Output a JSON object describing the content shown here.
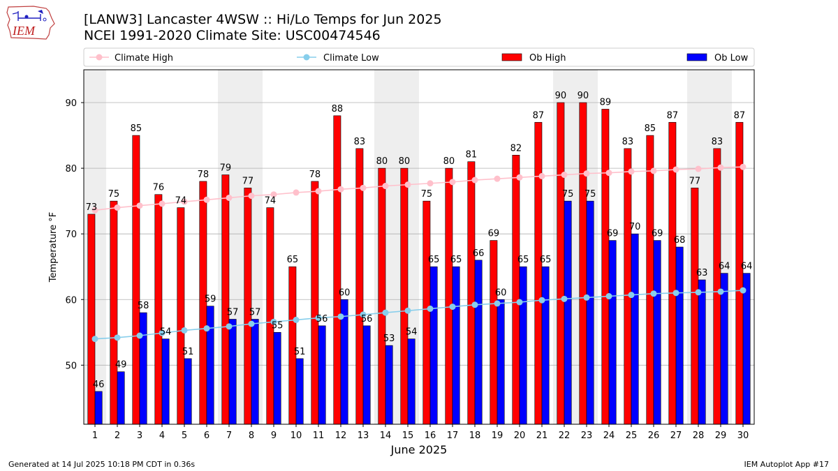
{
  "header": {
    "title_line1": "[LANW3] Lancaster 4WSW :: Hi/Lo Temps for Jun 2025",
    "title_line2": "NCEI 1991-2020 Climate Site: USC00474546",
    "logo_text": "IEM"
  },
  "footer": {
    "left": "Generated at 14 Jul 2025 10:18 PM CDT in 0.36s",
    "right": "IEM Autoplot App #17"
  },
  "colors": {
    "ob_high": "#ff0000",
    "ob_low": "#0000ff",
    "climate_high": "#ffc0cb",
    "climate_low": "#87ceeb",
    "weekend_shade": "#eeeeee",
    "grid": "#b0b0b0"
  },
  "chart_data": {
    "type": "bar",
    "xlabel": "June 2025",
    "ylabel": "Temperature °F",
    "ylim": [
      41,
      95
    ],
    "yticks": [
      50,
      60,
      70,
      80,
      90
    ],
    "grid": "horizontal",
    "legend_position": "top",
    "categories": [
      "1",
      "2",
      "3",
      "4",
      "5",
      "6",
      "7",
      "8",
      "9",
      "10",
      "11",
      "12",
      "13",
      "14",
      "15",
      "16",
      "17",
      "18",
      "19",
      "20",
      "21",
      "22",
      "23",
      "24",
      "25",
      "26",
      "27",
      "28",
      "29",
      "30"
    ],
    "shaded_days": [
      1,
      7,
      8,
      14,
      15,
      22,
      23,
      28,
      29
    ],
    "legend": [
      "Climate High",
      "Climate Low",
      "Ob High",
      "Ob Low"
    ],
    "series": [
      {
        "name": "Ob High",
        "kind": "bar",
        "values": [
          73,
          75,
          85,
          76,
          74,
          78,
          79,
          77,
          74,
          65,
          78,
          88,
          83,
          80,
          80,
          75,
          80,
          81,
          69,
          82,
          87,
          90,
          90,
          89,
          83,
          85,
          87,
          77,
          83,
          87
        ]
      },
      {
        "name": "Ob Low",
        "kind": "bar",
        "values": [
          46,
          49,
          58,
          54,
          51,
          59,
          57,
          57,
          55,
          51,
          56,
          60,
          56,
          53,
          54,
          65,
          65,
          66,
          60,
          65,
          65,
          75,
          75,
          69,
          70,
          69,
          68,
          63,
          64,
          64
        ]
      },
      {
        "name": "Climate High",
        "kind": "line",
        "values": [
          73.6,
          74.0,
          74.3,
          74.6,
          74.9,
          75.2,
          75.5,
          75.8,
          76.0,
          76.3,
          76.5,
          76.8,
          77.0,
          77.3,
          77.5,
          77.7,
          77.9,
          78.2,
          78.4,
          78.6,
          78.8,
          79.0,
          79.2,
          79.3,
          79.5,
          79.6,
          79.8,
          79.9,
          80.1,
          80.2
        ]
      },
      {
        "name": "Climate Low",
        "kind": "line",
        "values": [
          54.0,
          54.2,
          54.5,
          54.9,
          55.3,
          55.6,
          55.9,
          56.3,
          56.6,
          56.9,
          57.2,
          57.4,
          57.7,
          58.0,
          58.3,
          58.6,
          58.9,
          59.2,
          59.4,
          59.6,
          59.9,
          60.1,
          60.3,
          60.5,
          60.7,
          60.9,
          61.0,
          61.1,
          61.2,
          61.4
        ]
      }
    ]
  }
}
